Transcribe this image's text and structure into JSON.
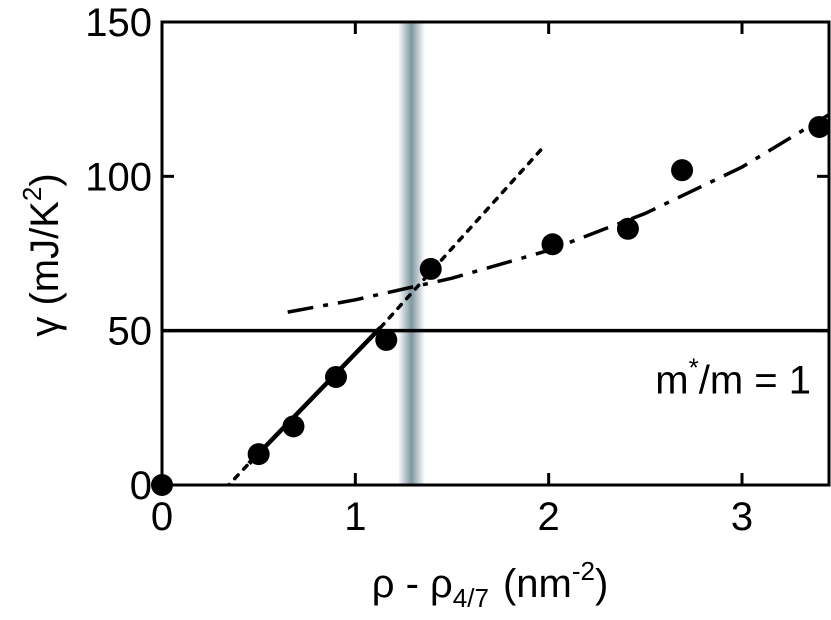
{
  "chart_data": {
    "type": "scatter",
    "xlabel": {
      "base": "ρ - ρ",
      "sub": "4/7",
      "unit": "(nm",
      "sup": "-2",
      "close": ")"
    },
    "ylabel": {
      "base": "γ  (mJ/K",
      "sup": "2",
      "close": ")"
    },
    "xlim": [
      0,
      3.45
    ],
    "ylim": [
      0,
      150
    ],
    "x_ticks": [
      {
        "value": 0,
        "label": "0"
      },
      {
        "value": 1,
        "label": "1"
      },
      {
        "value": 2,
        "label": "2"
      },
      {
        "value": 3,
        "label": "3"
      }
    ],
    "y_ticks": [
      {
        "value": 0,
        "label": "0"
      },
      {
        "value": 50,
        "label": "50"
      },
      {
        "value": 100,
        "label": "100"
      },
      {
        "value": 150,
        "label": "150"
      }
    ],
    "points": [
      {
        "x": 0.0,
        "y": 0
      },
      {
        "x": 0.5,
        "y": 10
      },
      {
        "x": 0.68,
        "y": 19
      },
      {
        "x": 0.9,
        "y": 35
      },
      {
        "x": 1.16,
        "y": 47
      },
      {
        "x": 1.39,
        "y": 70
      },
      {
        "x": 2.02,
        "y": 78
      },
      {
        "x": 2.41,
        "y": 83
      },
      {
        "x": 2.69,
        "y": 102
      },
      {
        "x": 3.4,
        "y": 116
      }
    ],
    "fits": [
      {
        "style": "solid",
        "points": [
          [
            0.45,
            7
          ],
          [
            1.13,
            51
          ]
        ]
      },
      {
        "style": "dotted",
        "points": [
          [
            0.33,
            -1
          ],
          [
            0.45,
            7
          ]
        ]
      },
      {
        "style": "dotted",
        "points": [
          [
            1.13,
            51
          ],
          [
            1.98,
            110
          ]
        ]
      },
      {
        "style": "dashdot",
        "points": [
          [
            0.65,
            56
          ],
          [
            1.0,
            60
          ],
          [
            1.5,
            67
          ],
          [
            2.0,
            76
          ],
          [
            2.5,
            88
          ],
          [
            3.0,
            103
          ],
          [
            3.45,
            120
          ]
        ]
      }
    ],
    "reference_line": {
      "y": 50,
      "label_base": "m",
      "label_sup": "*",
      "label_rest": "/m = 1"
    },
    "shaded_band": {
      "center": 1.29,
      "half_width": 0.07,
      "color": "#7f97a0"
    },
    "grid": false
  }
}
